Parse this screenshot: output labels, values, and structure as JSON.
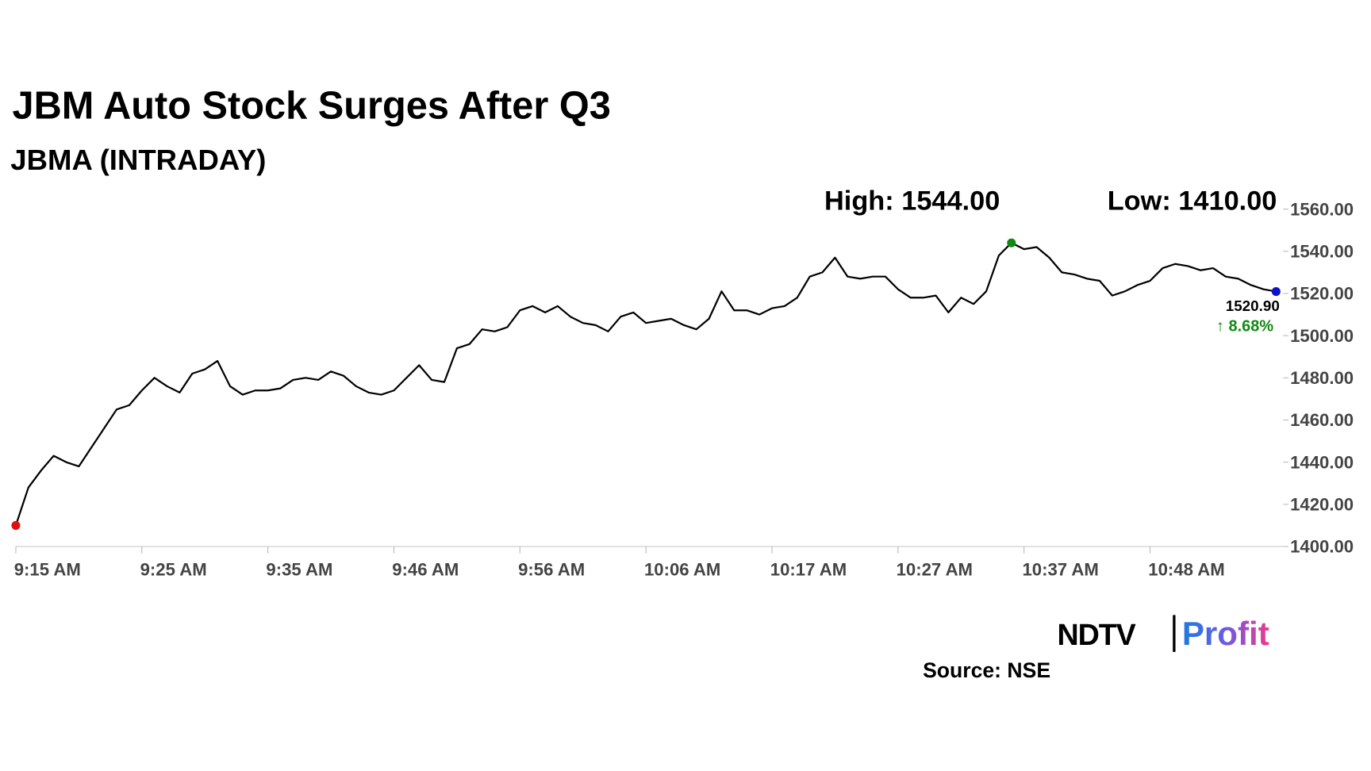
{
  "chart_data": {
    "type": "line",
    "title": "JBM Auto Stock Surges After Q3",
    "subtitle": "JBMA (INTRADAY)",
    "annotations": {
      "high": "High: 1544.00",
      "low": "Low: 1410.00",
      "last": "1520.90",
      "change": "↑ 8.68%"
    },
    "source": "Source: NSE",
    "logo": {
      "left": "NDTV",
      "right": "Profit"
    },
    "categories": [
      "9:15 AM",
      null,
      null,
      null,
      null,
      null,
      null,
      null,
      null,
      null,
      "9:25 AM",
      null,
      null,
      null,
      null,
      null,
      null,
      null,
      null,
      null,
      "9:35 AM",
      null,
      null,
      null,
      null,
      null,
      null,
      null,
      null,
      null,
      "9:46 AM",
      null,
      null,
      null,
      null,
      null,
      null,
      null,
      null,
      null,
      "9:56 AM",
      null,
      null,
      null,
      null,
      null,
      null,
      null,
      null,
      null,
      "10:06 AM",
      null,
      null,
      null,
      null,
      null,
      null,
      null,
      null,
      null,
      "10:17 AM",
      null,
      null,
      null,
      null,
      null,
      null,
      null,
      null,
      null,
      "10:27 AM",
      null,
      null,
      null,
      null,
      null,
      null,
      null,
      null,
      null,
      "10:37 AM",
      null,
      null,
      null,
      null,
      null,
      null,
      null,
      null,
      null,
      "10:48 AM",
      null,
      null,
      null,
      null,
      null,
      null,
      null,
      null,
      null,
      null
    ],
    "series": [
      {
        "name": "JBMA",
        "color": "#000000",
        "values": [
          1410,
          1428,
          1436,
          1443,
          1440,
          1438,
          1447,
          1456,
          1465,
          1467,
          1474,
          1480,
          1476,
          1473,
          1482,
          1484,
          1488,
          1476,
          1472,
          1474,
          1474,
          1475,
          1479,
          1480,
          1479,
          1483,
          1481,
          1476,
          1473,
          1472,
          1474,
          1480,
          1486,
          1479,
          1478,
          1494,
          1496,
          1503,
          1502,
          1504,
          1512,
          1514,
          1511,
          1514,
          1509,
          1506,
          1505,
          1502,
          1509,
          1511,
          1506,
          1507,
          1508,
          1505,
          1503,
          1508,
          1521,
          1512,
          1512,
          1510,
          1513,
          1514,
          1518,
          1528,
          1530,
          1537,
          1528,
          1527,
          1528,
          1528,
          1522,
          1518,
          1518,
          1519,
          1511,
          1518,
          1515,
          1521,
          1538,
          1544,
          1541,
          1542,
          1537,
          1530,
          1529,
          1527,
          1526,
          1519,
          1521,
          1524,
          1526,
          1532,
          1534,
          1533,
          1531,
          1532,
          1528,
          1527,
          1524,
          1522,
          1520.9
        ]
      }
    ],
    "marker_colors": {
      "high": "#108a10",
      "low": "#e01010",
      "last": "#1010c8"
    },
    "change_color": "#108a10",
    "ylim": [
      1400,
      1560
    ],
    "yticks": [
      {
        "value": 1400,
        "label": "1400.00"
      },
      {
        "value": 1420,
        "label": "1420.00"
      },
      {
        "value": 1440,
        "label": "1440.00"
      },
      {
        "value": 1460,
        "label": "1460.00"
      },
      {
        "value": 1480,
        "label": "1480.00"
      },
      {
        "value": 1500,
        "label": "1500.00"
      },
      {
        "value": 1520,
        "label": "1520.00"
      },
      {
        "value": 1540,
        "label": "1540.00"
      },
      {
        "value": 1560,
        "label": "1560.00"
      }
    ],
    "grid": false
  }
}
